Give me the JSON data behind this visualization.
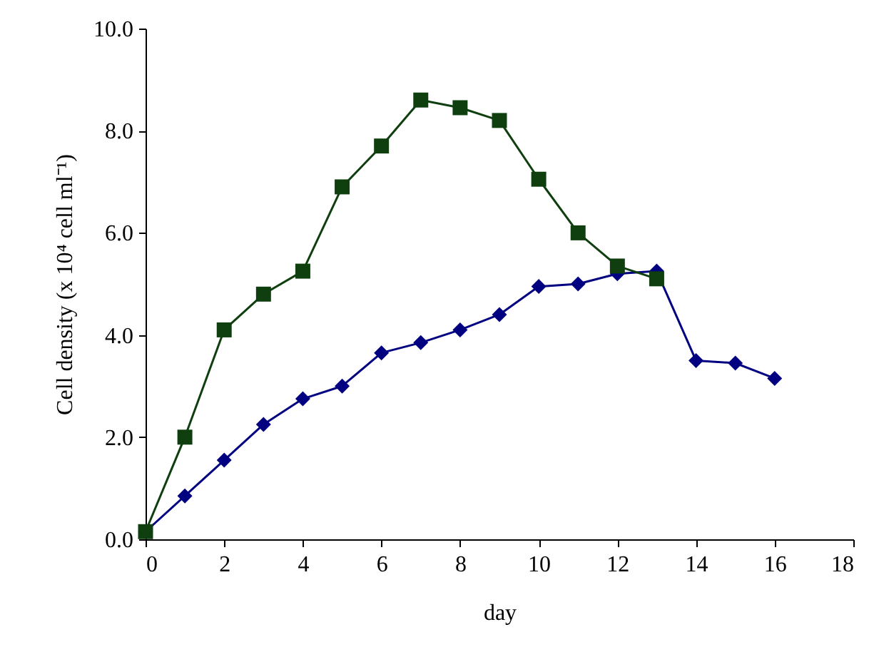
{
  "chart_data": {
    "type": "line",
    "xlabel": "day",
    "ylabel": "Cell density (x 10⁴ cell ml⁻¹)",
    "x": [
      0,
      1,
      2,
      3,
      4,
      5,
      6,
      7,
      8,
      9,
      10,
      11,
      12,
      13,
      14,
      15,
      16
    ],
    "xlim": [
      0,
      18
    ],
    "xticks": [
      0,
      2,
      4,
      6,
      8,
      10,
      12,
      14,
      16,
      18
    ],
    "ylim": [
      0,
      10
    ],
    "yticks": [
      {
        "value": 0,
        "label": "0.0"
      },
      {
        "value": 2,
        "label": "2.0"
      },
      {
        "value": 4,
        "label": "4.0"
      },
      {
        "value": 6,
        "label": "6.0"
      },
      {
        "value": 8,
        "label": "8.0"
      },
      {
        "value": 10,
        "label": "10.0"
      }
    ],
    "line_style": "solid",
    "series": [
      {
        "color": "#0f3f0f",
        "marker": "square",
        "values": [
          0.15,
          2.0,
          4.1,
          4.8,
          5.25,
          6.9,
          7.7,
          8.6,
          8.45,
          8.2,
          7.05,
          6.0,
          5.35,
          5.1,
          null,
          null,
          null
        ]
      },
      {
        "color": "#000080",
        "marker": "diamond",
        "values": [
          0.15,
          0.85,
          1.55,
          2.25,
          2.75,
          3.0,
          3.65,
          3.85,
          4.1,
          4.4,
          4.95,
          5.0,
          5.2,
          5.25,
          3.5,
          3.45,
          3.15
        ]
      }
    ]
  }
}
